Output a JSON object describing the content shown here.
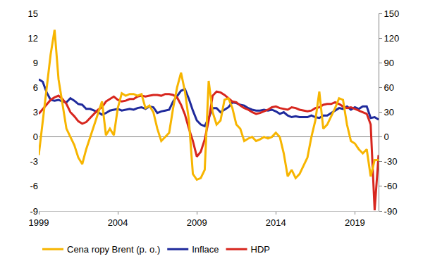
{
  "chart_data": {
    "type": "line",
    "x": [
      1999,
      1999.25,
      1999.5,
      1999.75,
      2000,
      2000.25,
      2000.5,
      2000.75,
      2001,
      2001.25,
      2001.5,
      2001.75,
      2002,
      2002.25,
      2002.5,
      2002.75,
      2003,
      2003.25,
      2003.5,
      2003.75,
      2004,
      2004.25,
      2004.5,
      2004.75,
      2005,
      2005.25,
      2005.5,
      2005.75,
      2006,
      2006.25,
      2006.5,
      2006.75,
      2007,
      2007.25,
      2007.5,
      2007.75,
      2008,
      2008.25,
      2008.5,
      2008.75,
      2009,
      2009.25,
      2009.5,
      2009.75,
      2010,
      2010.25,
      2010.5,
      2010.75,
      2011,
      2011.25,
      2011.5,
      2011.75,
      2012,
      2012.25,
      2012.5,
      2012.75,
      2013,
      2013.25,
      2013.5,
      2013.75,
      2014,
      2014.25,
      2014.5,
      2014.75,
      2015,
      2015.25,
      2015.5,
      2015.75,
      2016,
      2016.25,
      2016.5,
      2016.75,
      2017,
      2017.25,
      2017.5,
      2017.75,
      2018,
      2018.25,
      2018.5,
      2018.75,
      2019,
      2019.25,
      2019.5,
      2019.75,
      2020,
      2020.25,
      2020.5
    ],
    "series": [
      {
        "name": "Inflace",
        "color": "#1f2a9c",
        "values": [
          7.0,
          6.7,
          5.4,
          4.5,
          4.4,
          4.5,
          4.3,
          4.2,
          4.7,
          4.4,
          4.0,
          3.9,
          3.4,
          3.4,
          3.2,
          3.0,
          2.7,
          2.9,
          3.2,
          3.3,
          3.4,
          3.2,
          3.3,
          3.4,
          3.3,
          3.5,
          3.6,
          3.4,
          3.7,
          3.6,
          2.9,
          3.1,
          3.2,
          3.3,
          4.3,
          5.0,
          5.6,
          5.8,
          4.6,
          3.2,
          2.0,
          1.5,
          1.3,
          2.3,
          3.5,
          3.5,
          3.0,
          3.3,
          3.6,
          4.2,
          4.1,
          3.9,
          3.8,
          3.5,
          3.3,
          3.2,
          3.2,
          3.3,
          3.2,
          3.3,
          3.1,
          2.8,
          3.0,
          2.6,
          2.4,
          2.5,
          2.4,
          2.4,
          2.4,
          2.6,
          2.4,
          2.3,
          2.6,
          2.6,
          2.9,
          3.2,
          3.5,
          3.4,
          3.7,
          3.3,
          3.6,
          3.4,
          3.7,
          3.7,
          2.3,
          2.4,
          2.1
        ]
      },
      {
        "name": "HDP",
        "color": "#d7261e",
        "values": [
          2.8,
          3.4,
          4.0,
          4.5,
          4.8,
          5.0,
          4.6,
          4.0,
          3.0,
          2.5,
          1.9,
          1.6,
          1.8,
          2.3,
          2.8,
          3.3,
          3.6,
          4.3,
          4.6,
          4.9,
          4.5,
          4.3,
          4.4,
          4.6,
          4.6,
          4.9,
          5.0,
          4.9,
          5.0,
          5.1,
          5.1,
          5.0,
          5.2,
          5.2,
          5.1,
          4.8,
          3.9,
          2.7,
          1.0,
          -0.5,
          -2.4,
          -1.8,
          -0.3,
          2.0,
          5.0,
          5.5,
          5.4,
          5.1,
          4.7,
          4.3,
          4.2,
          3.8,
          3.5,
          3.3,
          3.0,
          2.8,
          2.9,
          3.1,
          3.3,
          3.6,
          3.7,
          3.5,
          3.4,
          3.3,
          3.6,
          3.5,
          3.3,
          3.2,
          3.1,
          3.2,
          3.5,
          3.6,
          3.9,
          4.0,
          4.0,
          4.2,
          4.0,
          3.7,
          3.5,
          3.6,
          3.4,
          3.2,
          3.0,
          2.8,
          1.5,
          -8.9,
          -2.2
        ]
      },
      {
        "name": "Cena ropy Brent (p. o.)",
        "color": "#f7b500",
        "axis": "y2",
        "values": [
          -22,
          20,
          60,
          100,
          130,
          70,
          40,
          10,
          0,
          -10,
          -25,
          -33,
          -15,
          0,
          15,
          30,
          43,
          2,
          10,
          2,
          35,
          53,
          50,
          52,
          52,
          50,
          52,
          35,
          38,
          30,
          10,
          -5,
          0,
          5,
          35,
          60,
          78,
          55,
          20,
          -45,
          -52,
          -50,
          -40,
          68,
          30,
          15,
          20,
          45,
          47,
          35,
          15,
          10,
          -5,
          -2,
          0,
          -5,
          -3,
          0,
          -2,
          0,
          5,
          0,
          -20,
          -48,
          -40,
          -50,
          -45,
          -35,
          -25,
          0,
          20,
          55,
          10,
          15,
          25,
          35,
          47,
          45,
          15,
          -5,
          -8,
          -15,
          -20,
          -15,
          -48,
          -28,
          -28
        ]
      }
    ],
    "xlim": [
      1999,
      2020.5
    ],
    "xticks": [
      1999,
      2004,
      2009,
      2014,
      2019
    ],
    "ylim": [
      -9,
      15
    ],
    "yticks": [
      -9,
      -6,
      -3,
      0,
      3,
      6,
      9,
      12,
      15
    ],
    "y2lim": [
      -90,
      150
    ],
    "y2ticks": [
      -90,
      -60,
      -30,
      0,
      30,
      60,
      90,
      120,
      150
    ],
    "grid": false,
    "legend": "bottom"
  }
}
